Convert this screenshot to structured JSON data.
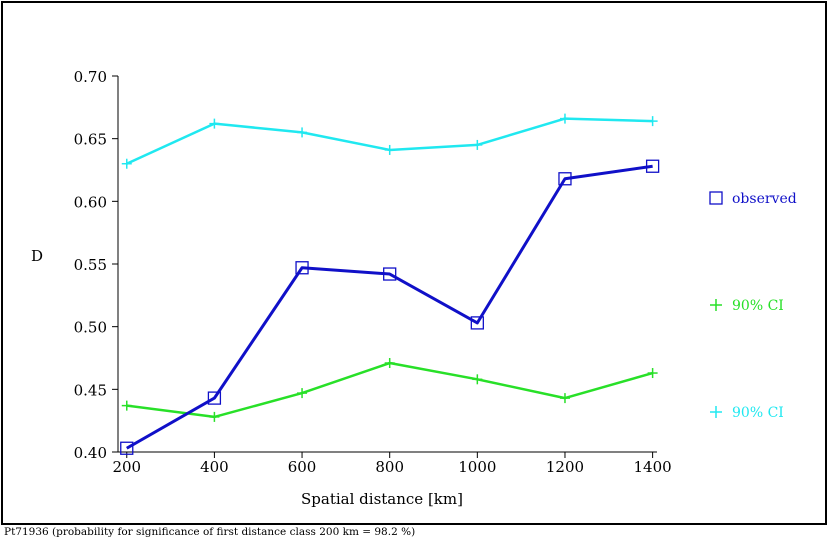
{
  "chart_data": {
    "type": "line",
    "title": "",
    "xlabel": "Spatial distance [km]",
    "ylabel": "D",
    "x": [
      200,
      400,
      600,
      800,
      1000,
      1200,
      1400
    ],
    "xticks": [
      "200",
      "400",
      "600",
      "800",
      "1000",
      "1200",
      "1400"
    ],
    "yticks": [
      "0.40",
      "0.45",
      "0.50",
      "0.55",
      "0.60",
      "0.65",
      "0.70"
    ],
    "xlim": [
      180,
      1410
    ],
    "ylim": [
      0.4,
      0.7
    ],
    "grid": false,
    "legend_position": "right",
    "series": [
      {
        "name": "observed",
        "color": "#1010c8",
        "marker": "square",
        "values": [
          0.403,
          0.443,
          0.547,
          0.542,
          0.503,
          0.618,
          0.628
        ]
      },
      {
        "name": "90% CI",
        "color": "#28e028",
        "marker": "plus",
        "values": [
          0.437,
          0.428,
          0.447,
          0.471,
          0.458,
          0.443,
          0.463
        ]
      },
      {
        "name": "90% CI",
        "color": "#20e8f0",
        "marker": "plus",
        "values": [
          0.63,
          0.662,
          0.655,
          0.641,
          0.645,
          0.666,
          0.664
        ]
      }
    ]
  },
  "caption": "Pt71936 (probability for significance of first distance class 200 km = 98.2 %)"
}
